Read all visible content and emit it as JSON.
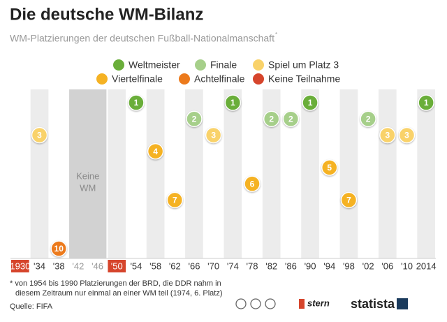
{
  "chart_data": {
    "type": "dot",
    "title": "Die deutsche WM-Bilanz",
    "subtitle": "WM-Platzierungen der deutschen Fußball-Nationalmanschaft",
    "subtitle_mark": "*",
    "categories": [
      "1930",
      "'34",
      "'38",
      "'42",
      "'46",
      "'50",
      "'54",
      "'58",
      "'62",
      "'66",
      "'70",
      "'74",
      "'78",
      "'82",
      "'86",
      "'90",
      "'94",
      "'98",
      "'02",
      "'06",
      "'10",
      "2014"
    ],
    "ylim": [
      1,
      10
    ],
    "series": [
      {
        "name": "Weltmeister",
        "color": "#6aae3a",
        "values": [
          null,
          null,
          null,
          null,
          null,
          null,
          1,
          null,
          null,
          null,
          null,
          1,
          null,
          null,
          null,
          1,
          null,
          null,
          null,
          null,
          null,
          1
        ]
      },
      {
        "name": "Finale",
        "color": "#a6cf8a",
        "values": [
          null,
          null,
          null,
          null,
          null,
          null,
          null,
          null,
          null,
          2,
          null,
          null,
          null,
          2,
          2,
          null,
          null,
          null,
          2,
          null,
          null,
          null
        ]
      },
      {
        "name": "Spiel um Platz 3",
        "color": "#f9d26a",
        "values": [
          null,
          3,
          null,
          null,
          null,
          null,
          null,
          null,
          null,
          null,
          3,
          null,
          null,
          null,
          null,
          null,
          null,
          null,
          null,
          3,
          3,
          null
        ]
      },
      {
        "name": "Viertelfinale",
        "color": "#f5b223",
        "values": [
          null,
          null,
          null,
          null,
          null,
          null,
          null,
          4,
          7,
          null,
          null,
          null,
          6,
          null,
          null,
          null,
          5,
          7,
          null,
          null,
          null,
          null
        ]
      },
      {
        "name": "Achtelfinale",
        "color": "#ec7a1c",
        "values": [
          null,
          null,
          10,
          null,
          null,
          null,
          null,
          null,
          null,
          null,
          null,
          null,
          null,
          null,
          null,
          null,
          null,
          null,
          null,
          null,
          null,
          null
        ]
      }
    ],
    "no_participation": {
      "name": "Keine Teilnahme",
      "color": "#d6452c",
      "flags": [
        true,
        false,
        false,
        false,
        false,
        true,
        false,
        false,
        false,
        false,
        false,
        false,
        false,
        false,
        false,
        false,
        false,
        false,
        false,
        false,
        false,
        false
      ]
    },
    "no_world_cup": {
      "label_lines": [
        "Keine",
        "WM"
      ],
      "flags": [
        false,
        false,
        false,
        true,
        true,
        false,
        false,
        false,
        false,
        false,
        false,
        false,
        false,
        false,
        false,
        false,
        false,
        false,
        false,
        false,
        false,
        false
      ]
    },
    "footnote": [
      "* von 1954 bis 1990 Platzierungen der BRD, die DDR nahm in",
      "diesem Zeitraum nur einmal an einer WM teil (1974, 6. Platz)"
    ],
    "source": "Quelle: FIFA",
    "branding": [
      "stern",
      "statista"
    ]
  }
}
